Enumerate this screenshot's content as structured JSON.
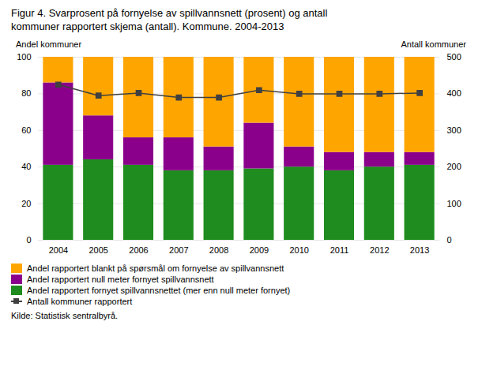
{
  "chart_data": {
    "type": "bar",
    "title": "Figur 4. Svarprosent på fornyelse av spillvannsnett (prosent) og antall",
    "subtitle": "kommuner rapportert skjema (antall). Kommune. 2004-2013",
    "ylabel": "Andel kommuner",
    "y2label": "Antall kommuner",
    "source": "Kilde: Statistisk sentralbyrå.",
    "categories": [
      "2004",
      "2005",
      "2006",
      "2007",
      "2008",
      "2009",
      "2010",
      "2011",
      "2012",
      "2013"
    ],
    "stacked": true,
    "series": [
      {
        "name": "Andel rapportert fornyet spillvannsnettet (mer enn null meter fornyet)",
        "color": "#1e8c1e",
        "values": [
          41,
          44,
          41,
          38,
          38,
          39,
          40,
          38,
          40,
          41
        ]
      },
      {
        "name": "Andel rapportert null meter fornyet spillvannsnett",
        "color": "#8b008b",
        "values": [
          45,
          24,
          15,
          18,
          13,
          25,
          11,
          10,
          8,
          7
        ]
      },
      {
        "name": "Andel rapportert blankt på spørsmål om fornyelse av spillvannsnett",
        "color": "#ffa500",
        "values": [
          14,
          32,
          44,
          44,
          49,
          36,
          49,
          52,
          52,
          52
        ]
      },
      {
        "name": "Antall kommuner rapportert",
        "type": "line",
        "axis": "y2",
        "color": "#404040",
        "marker": "square",
        "values": [
          425,
          395,
          402,
          390,
          390,
          410,
          400,
          400,
          400,
          402
        ]
      }
    ],
    "ylim": [
      0,
      100
    ],
    "yticks": [
      0,
      20,
      40,
      60,
      80,
      100
    ],
    "y2lim": [
      0,
      500
    ],
    "y2ticks": [
      0,
      100,
      200,
      300,
      400,
      500
    ],
    "grid": true,
    "legend": "bottom"
  }
}
